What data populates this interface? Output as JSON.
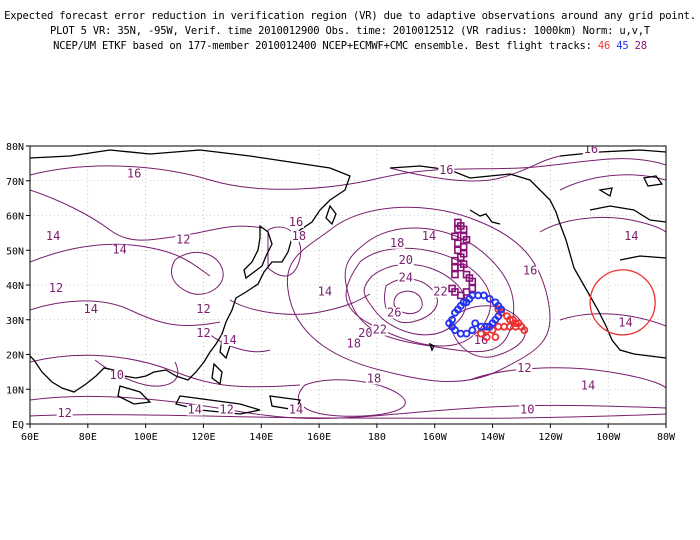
{
  "header": {
    "line1": "Expected forecast error reduction in verification region (VR) due to adaptive observations around any grid point.",
    "line2": "PLOT 5 VR: 35N, -95W, Verif. time 2010012900 Obs. time: 2010012512 (VR radius: 1000km) Norm: u,v,T",
    "line3": "NCEP/UM ETKF based on 177-member 2010012400 NCEP+ECMWF+CMC ensemble. Best flight tracks:",
    "track_red": "46",
    "track_blue": "45",
    "track_purple": "28"
  },
  "colors": {
    "contour": "#7a1e6e",
    "coast": "#000000",
    "grid": "#999999",
    "track_red": "#ee3333",
    "track_blue": "#2233ee",
    "track_purple": "#881177",
    "vr_circle": "#ee3333"
  },
  "map": {
    "lon_labels": [
      "60E",
      "80E",
      "100E",
      "120E",
      "140E",
      "160E",
      "180",
      "160W",
      "140W",
      "120W",
      "100W",
      "80W"
    ],
    "lat_labels": [
      "EQ",
      "10N",
      "20N",
      "30N",
      "40N",
      "50N",
      "60N",
      "70N",
      "80N"
    ],
    "contour_labels": [
      {
        "text": "16",
        "lon": 96,
        "lat": 71
      },
      {
        "text": "14",
        "lon": 68,
        "lat": 53
      },
      {
        "text": "14",
        "lon": 91,
        "lat": 49
      },
      {
        "text": "12",
        "lon": 113,
        "lat": 52
      },
      {
        "text": "12",
        "lon": 69,
        "lat": 38
      },
      {
        "text": "14",
        "lon": 81,
        "lat": 32
      },
      {
        "text": "12",
        "lon": 120,
        "lat": 32
      },
      {
        "text": "12",
        "lon": 120,
        "lat": 25
      },
      {
        "text": "14",
        "lon": 129,
        "lat": 23
      },
      {
        "text": "10",
        "lon": 90,
        "lat": 13
      },
      {
        "text": "12",
        "lon": 72,
        "lat": 2
      },
      {
        "text": "14",
        "lon": 117,
        "lat": 3
      },
      {
        "text": "12",
        "lon": 128,
        "lat": 3
      },
      {
        "text": "14",
        "lon": 152,
        "lat": 3
      },
      {
        "text": "16",
        "lon": 152,
        "lat": 57
      },
      {
        "text": "18",
        "lon": 153,
        "lat": 53
      },
      {
        "text": "14",
        "lon": 162,
        "lat": 37
      },
      {
        "text": "18",
        "lon": 187,
        "lat": 51
      },
      {
        "text": "20",
        "lon": 190,
        "lat": 46
      },
      {
        "text": "24",
        "lon": 190,
        "lat": 41
      },
      {
        "text": "22",
        "lon": 202,
        "lat": 37
      },
      {
        "text": "26",
        "lon": 186,
        "lat": 31
      },
      {
        "text": "20",
        "lon": 176,
        "lat": 25
      },
      {
        "text": "22",
        "lon": 181,
        "lat": 26
      },
      {
        "text": "18",
        "lon": 172,
        "lat": 22
      },
      {
        "text": "18",
        "lon": 179,
        "lat": 12
      },
      {
        "text": "14",
        "lon": 198,
        "lat": 53
      },
      {
        "text": "16",
        "lon": 204,
        "lat": 72
      },
      {
        "text": "16",
        "lon": 233,
        "lat": 43
      },
      {
        "text": "16",
        "lon": 216,
        "lat": 23
      },
      {
        "text": "12",
        "lon": 231,
        "lat": 15
      },
      {
        "text": "10",
        "lon": 232,
        "lat": 3
      },
      {
        "text": "14",
        "lon": 253,
        "lat": 10
      },
      {
        "text": "16",
        "lon": 254,
        "lat": 78
      },
      {
        "text": "14",
        "lon": 268,
        "lat": 53
      },
      {
        "text": "14",
        "lon": 266,
        "lat": 28
      }
    ],
    "track_red_points": [
      [
        222,
        33
      ],
      [
        223,
        32
      ],
      [
        225,
        31
      ],
      [
        226,
        30
      ],
      [
        227,
        30
      ],
      [
        228,
        29
      ],
      [
        229,
        29
      ],
      [
        230,
        28
      ],
      [
        231,
        27
      ],
      [
        228,
        28
      ],
      [
        226,
        28
      ],
      [
        224,
        28
      ],
      [
        222,
        28
      ],
      [
        220,
        27
      ],
      [
        218,
        27
      ],
      [
        216,
        26
      ],
      [
        218,
        25
      ],
      [
        221,
        25
      ]
    ],
    "track_blue_points": [
      [
        206,
        30
      ],
      [
        207,
        32
      ],
      [
        208,
        33
      ],
      [
        209,
        34
      ],
      [
        210,
        35
      ],
      [
        211,
        35
      ],
      [
        212,
        36
      ],
      [
        213,
        37
      ],
      [
        215,
        37
      ],
      [
        217,
        37
      ],
      [
        219,
        36
      ],
      [
        221,
        35
      ],
      [
        222,
        34
      ],
      [
        223,
        33
      ],
      [
        222,
        31
      ],
      [
        221,
        30
      ],
      [
        220,
        29
      ],
      [
        219,
        28
      ],
      [
        218,
        28
      ],
      [
        216,
        28
      ],
      [
        214,
        29
      ],
      [
        213,
        27
      ],
      [
        211,
        26
      ],
      [
        209,
        26
      ],
      [
        207,
        27
      ],
      [
        206,
        28
      ],
      [
        205,
        29
      ]
    ],
    "track_purple_points": [
      [
        208,
        58
      ],
      [
        209,
        57
      ],
      [
        210,
        56
      ],
      [
        210,
        54
      ],
      [
        211,
        53
      ],
      [
        210,
        51
      ],
      [
        210,
        49
      ],
      [
        209,
        48
      ],
      [
        210,
        46
      ],
      [
        209,
        45
      ],
      [
        211,
        43
      ],
      [
        212,
        42
      ],
      [
        213,
        41
      ],
      [
        213,
        39
      ],
      [
        211,
        38
      ],
      [
        209,
        37
      ],
      [
        207,
        38
      ],
      [
        206,
        39
      ],
      [
        207,
        43
      ],
      [
        207,
        45
      ],
      [
        207,
        47
      ],
      [
        208,
        50
      ],
      [
        208,
        52
      ],
      [
        207,
        54
      ],
      [
        208,
        56
      ]
    ],
    "vr_circle": {
      "lon": 265,
      "lat": 35,
      "r_deg": 9
    }
  }
}
